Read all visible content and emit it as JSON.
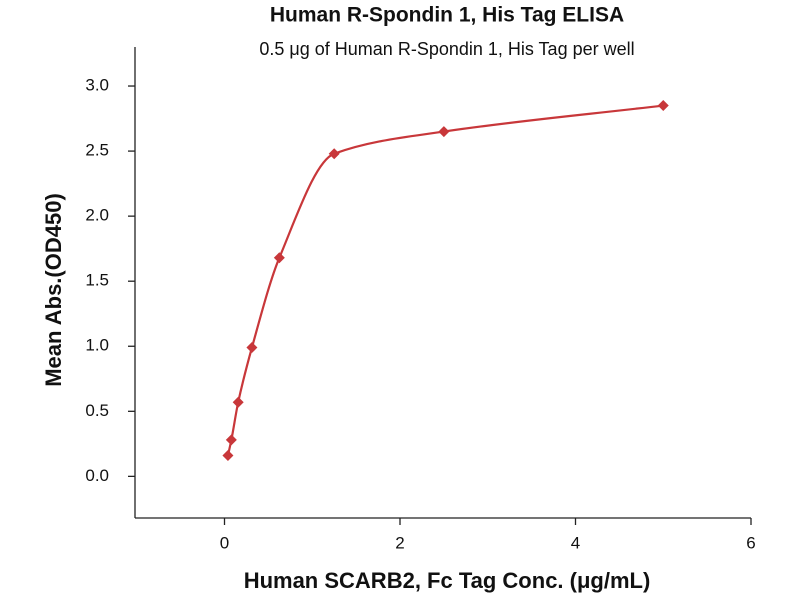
{
  "chart_data": {
    "type": "scatter",
    "title": "Human R-Spondin 1, His Tag ELISA",
    "subtitle": "0.5 μg of Human R-Spondin 1, His Tag per well",
    "x_label": "Human SCARB2, Fc Tag Conc. (μg/mL)",
    "y_label": "Mean Abs.(OD450)",
    "series": [
      {
        "name": "Human SCARB2, Fc Tag",
        "color": "#c8373a",
        "x": [
          0.039,
          0.078,
          0.156,
          0.3125,
          0.625,
          1.25,
          2.5,
          5
        ],
        "values": [
          0.16,
          0.28,
          0.57,
          0.99,
          1.68,
          2.48,
          2.65,
          2.85
        ]
      }
    ],
    "xlim": [
      -1.02,
      6
    ],
    "xticks": [
      0,
      2,
      4,
      6
    ],
    "ylim": [
      -0.32,
      3.3
    ],
    "yticks": [
      {
        "value": 0,
        "label": "0.0"
      },
      0.5,
      {
        "value": 1,
        "label": "1.0"
      },
      1.5,
      {
        "value": 2,
        "label": "2.0"
      },
      2.5,
      {
        "value": 3,
        "label": "3.0"
      }
    ]
  }
}
